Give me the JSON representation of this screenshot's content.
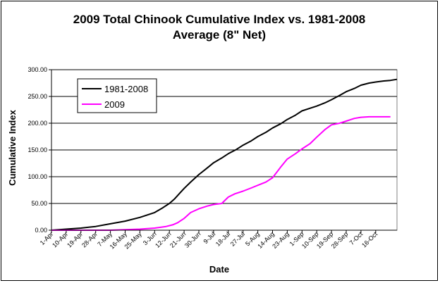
{
  "chart_data": {
    "type": "line",
    "title": "2009 Total Chinook  Cumulative Index vs. 1981-2008",
    "subtitle": "Average (8\" Net)",
    "xlabel": "Date",
    "ylabel": "Cumulative Index",
    "ylim": [
      0,
      300
    ],
    "y_ticks": [
      "0.00",
      "50.00",
      "100.00",
      "150.00",
      "200.00",
      "250.00",
      "300.00"
    ],
    "y_tick_values": [
      0,
      50,
      100,
      150,
      200,
      250,
      300
    ],
    "grid": true,
    "legend_position": "top-left",
    "x_ticks": [
      "1-Apr",
      "10-Apr",
      "19-Apr",
      "28-Apr",
      "7-May",
      "16-May",
      "25-May",
      "3-Jun",
      "12-Jun",
      "21-Jun",
      "30-Jun",
      "9-Jul",
      "18-Jul",
      "27-Jul",
      "5-Aug",
      "14-Aug",
      "23-Aug",
      "1-Sep",
      "10-Sep",
      "19-Sep",
      "28-Sep",
      "7-Oct",
      "16-Oct"
    ],
    "x_tick_days": [
      0,
      9,
      18,
      27,
      36,
      45,
      54,
      63,
      72,
      81,
      90,
      99,
      108,
      117,
      126,
      135,
      144,
      153,
      162,
      171,
      180,
      189,
      198
    ],
    "xlim": [
      0,
      211
    ],
    "series": [
      {
        "name": "1981-2008",
        "color": "#000000",
        "x": [
          0,
          9,
          18,
          27,
          36,
          45,
          54,
          63,
          68,
          72,
          75,
          78,
          81,
          85,
          90,
          95,
          99,
          104,
          108,
          113,
          117,
          122,
          126,
          131,
          135,
          140,
          144,
          149,
          153,
          158,
          162,
          167,
          171,
          176,
          180,
          185,
          189,
          194,
          198,
          203,
          207,
          211
        ],
        "y": [
          0,
          2,
          4,
          7,
          12,
          17,
          24,
          33,
          42,
          50,
          58,
          68,
          78,
          90,
          104,
          116,
          126,
          135,
          143,
          151,
          159,
          167,
          175,
          183,
          191,
          199,
          207,
          215,
          223,
          228,
          232,
          238,
          244,
          252,
          259,
          265,
          271,
          275,
          277,
          279,
          280,
          282
        ]
      },
      {
        "name": "2009",
        "color": "#ff00ff",
        "x": [
          0,
          36,
          45,
          54,
          63,
          70,
          74,
          77,
          81,
          85,
          90,
          95,
          99,
          104,
          108,
          112,
          117,
          122,
          126,
          131,
          135,
          140,
          144,
          149,
          153,
          158,
          162,
          167,
          171,
          176,
          180,
          185,
          189,
          194,
          198,
          203,
          207
        ],
        "y": [
          0,
          0,
          1,
          2,
          4,
          7,
          10,
          14,
          22,
          33,
          40,
          45,
          48,
          50,
          62,
          68,
          73,
          79,
          84,
          90,
          98,
          118,
          133,
          143,
          152,
          162,
          174,
          188,
          197,
          200,
          204,
          209,
          211,
          212,
          212,
          212,
          212
        ]
      }
    ]
  }
}
